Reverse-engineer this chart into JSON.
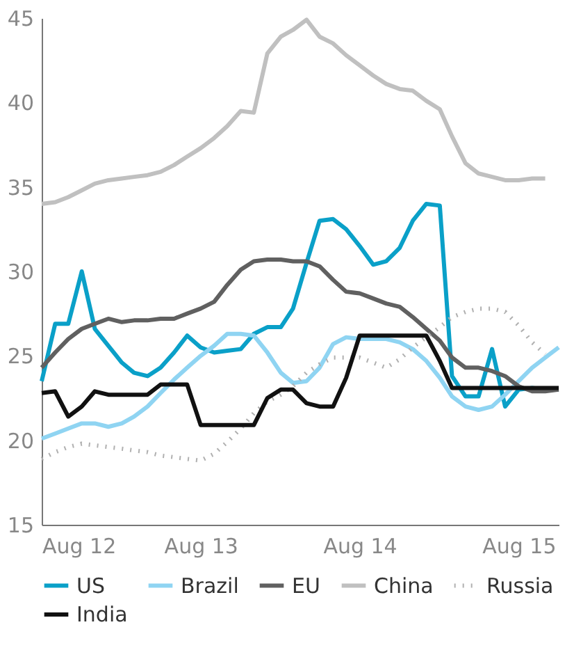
{
  "chart_data": {
    "type": "line",
    "x": [
      "2012-08",
      "2012-09",
      "2012-10",
      "2012-11",
      "2012-12",
      "2013-01",
      "2013-02",
      "2013-03",
      "2013-04",
      "2013-05",
      "2013-06",
      "2013-07",
      "2013-08",
      "2013-09",
      "2013-10",
      "2013-11",
      "2013-12",
      "2014-01",
      "2014-02",
      "2014-03",
      "2014-04",
      "2014-05",
      "2014-06",
      "2014-07",
      "2014-08",
      "2014-09",
      "2014-10",
      "2014-11",
      "2014-12",
      "2015-01",
      "2015-02",
      "2015-03",
      "2015-04",
      "2015-05",
      "2015-06",
      "2015-07",
      "2015-08",
      "2015-09",
      "2015-10",
      "2015-11"
    ],
    "series": [
      {
        "name": "US",
        "color": "#0aa0c8",
        "values": [
          23.5,
          26.9,
          26.9,
          30.0,
          26.6,
          25.6,
          24.6,
          24.0,
          23.8,
          24.3,
          25.2,
          26.2,
          25.5,
          25.2,
          25.3,
          25.4,
          26.3,
          26.7,
          26.7,
          27.8,
          30.5,
          33.0,
          33.1,
          32.5,
          31.5,
          30.4,
          30.6,
          31.4,
          33.0,
          34.0,
          33.9,
          23.8,
          22.6,
          22.6,
          25.4,
          22.0,
          23.0,
          23.1,
          23.0,
          23.0
        ]
      },
      {
        "name": "Brazil",
        "color": "#8fd4f2",
        "values": [
          20.1,
          20.4,
          20.7,
          21.0,
          21.0,
          20.8,
          21.0,
          21.4,
          22.0,
          22.8,
          23.6,
          24.3,
          25.0,
          25.6,
          26.3,
          26.3,
          26.2,
          25.2,
          24.0,
          23.4,
          23.5,
          24.3,
          25.7,
          26.1,
          26.0,
          26.0,
          26.0,
          25.8,
          25.4,
          24.7,
          23.7,
          22.6,
          22.0,
          21.8,
          22.0,
          22.7,
          23.5,
          24.3,
          24.9,
          25.5
        ]
      },
      {
        "name": "EU",
        "color": "#606060",
        "values": [
          24.3,
          25.2,
          26.0,
          26.6,
          26.9,
          27.2,
          27.0,
          27.1,
          27.1,
          27.2,
          27.2,
          27.5,
          27.8,
          28.2,
          29.2,
          30.1,
          30.6,
          30.7,
          30.7,
          30.6,
          30.6,
          30.3,
          29.5,
          28.8,
          28.7,
          28.4,
          28.1,
          27.9,
          27.3,
          26.6,
          25.9,
          24.9,
          24.3,
          24.3,
          24.1,
          23.8,
          23.2,
          22.9,
          22.9,
          23.0
        ]
      },
      {
        "name": "China",
        "color": "#c0c0c0",
        "values": [
          34.0,
          34.1,
          34.4,
          34.8,
          35.2,
          35.4,
          35.5,
          35.6,
          35.7,
          35.9,
          36.3,
          36.8,
          37.3,
          37.9,
          38.6,
          39.5,
          39.4,
          42.9,
          43.9,
          44.3,
          44.9,
          43.9,
          43.5,
          42.8,
          42.2,
          41.6,
          41.1,
          40.8,
          40.7,
          40.1,
          39.6,
          38.0,
          36.4,
          35.8,
          35.6,
          35.4,
          35.4,
          35.5,
          35.5,
          null
        ]
      },
      {
        "name": "Russia",
        "color": "#b0b0b0",
        "line_style": "dotted",
        "values": [
          18.9,
          19.3,
          19.6,
          19.8,
          19.7,
          19.6,
          19.5,
          19.4,
          19.3,
          19.1,
          19.0,
          18.9,
          18.8,
          19.2,
          19.9,
          20.7,
          21.6,
          22.3,
          22.7,
          23.2,
          24.0,
          24.5,
          24.9,
          24.9,
          24.9,
          24.6,
          24.3,
          24.8,
          25.5,
          26.1,
          26.7,
          27.3,
          27.6,
          27.8,
          27.8,
          27.6,
          26.8,
          25.8,
          25.1,
          null
        ]
      },
      {
        "name": "India",
        "color": "#111111",
        "values": [
          22.8,
          22.9,
          21.4,
          22.0,
          22.9,
          22.7,
          22.7,
          22.7,
          22.7,
          23.3,
          23.3,
          23.3,
          20.9,
          20.9,
          20.9,
          20.9,
          20.9,
          22.5,
          23.0,
          23.0,
          22.2,
          22.0,
          22.0,
          23.7,
          26.2,
          26.2,
          26.2,
          26.2,
          26.2,
          26.2,
          24.7,
          23.1,
          23.1,
          23.1,
          23.1,
          23.1,
          23.1,
          23.1,
          23.1,
          23.1
        ]
      }
    ],
    "xlim": [
      "2012-08",
      "2015-11"
    ],
    "xticks": [
      {
        "value": "2012-08",
        "label": "Aug 12"
      },
      {
        "value": "2013-08",
        "label": "Aug 13"
      },
      {
        "value": "2014-08",
        "label": "Aug 14"
      },
      {
        "value": "2015-08",
        "label": "Aug 15"
      }
    ],
    "ylim": [
      15,
      45
    ],
    "yticks": [
      15,
      20,
      25,
      30,
      35,
      40,
      45
    ],
    "grid": false,
    "legend": "bottom",
    "line_style": "solid",
    "marker": "none"
  }
}
